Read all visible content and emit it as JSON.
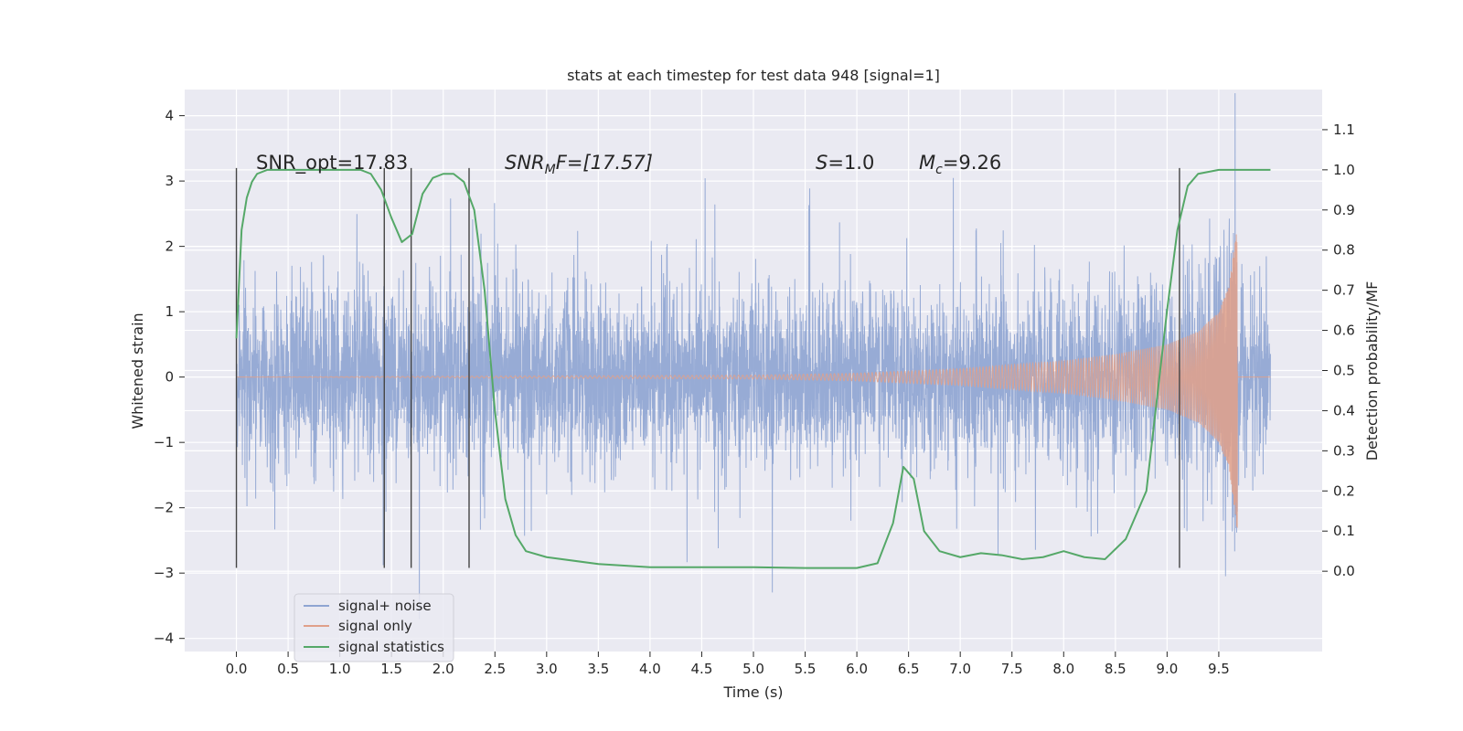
{
  "chart_data": {
    "type": "line",
    "title": "stats at each timestep for test data 948 [signal=1]",
    "xlabel": "Time (s)",
    "ylabel": "Whitened strain",
    "ylabel_right": "Detection probability/MF",
    "xlim": [
      -0.5,
      10.5
    ],
    "ylim": [
      -4.2,
      4.4
    ],
    "ylim_right": [
      -0.2,
      1.2
    ],
    "x_ticks": [
      "0.0",
      "0.5",
      "1.0",
      "1.5",
      "2.0",
      "2.5",
      "3.0",
      "3.5",
      "4.0",
      "4.5",
      "5.0",
      "5.5",
      "6.0",
      "6.5",
      "7.0",
      "7.5",
      "8.0",
      "8.5",
      "9.0",
      "9.5"
    ],
    "y_ticks": [
      "4",
      "3",
      "2",
      "1",
      "0",
      "−1",
      "−2",
      "−3",
      "−4"
    ],
    "y_ticks_right": [
      "1.1",
      "1.0",
      "0.9",
      "0.8",
      "0.7",
      "0.6",
      "0.5",
      "0.4",
      "0.3",
      "0.2",
      "0.1",
      "0.0"
    ],
    "grid": true,
    "legend_position": "bottom-left",
    "annotations": {
      "snr_opt": "SNR_opt=17.83",
      "snr_mf_main": "SNR",
      "snr_mf_sub": "M",
      "snr_mf_rest": "F=[17.57]",
      "s_main": "S",
      "s_rest": "=1.0",
      "mc_main": "M",
      "mc_sub": "c",
      "mc_rest": "=9.26"
    },
    "series": [
      {
        "name": "signal+ noise",
        "color": "#8fa5d2",
        "x_range": [
          0.0,
          10.0
        ],
        "typical_amplitude": 1.3,
        "peak_amplitude": 4.0
      },
      {
        "name": "signal only",
        "color": "#e0a08a",
        "x_range": [
          0.0,
          9.7
        ],
        "envelope": [
          [
            0.0,
            0.0
          ],
          [
            5.0,
            0.03
          ],
          [
            6.0,
            0.06
          ],
          [
            7.0,
            0.13
          ],
          [
            8.0,
            0.25
          ],
          [
            8.5,
            0.35
          ],
          [
            9.0,
            0.5
          ],
          [
            9.3,
            0.7
          ],
          [
            9.5,
            1.0
          ],
          [
            9.6,
            1.4
          ],
          [
            9.68,
            2.4
          ]
        ]
      },
      {
        "name": "signal statistics",
        "color": "#55a868",
        "axis": "right",
        "points": [
          [
            0.0,
            0.58
          ],
          [
            0.05,
            0.85
          ],
          [
            0.1,
            0.93
          ],
          [
            0.15,
            0.97
          ],
          [
            0.2,
            0.99
          ],
          [
            0.3,
            1.0
          ],
          [
            0.5,
            1.0
          ],
          [
            1.0,
            1.0
          ],
          [
            1.2,
            1.0
          ],
          [
            1.3,
            0.99
          ],
          [
            1.4,
            0.95
          ],
          [
            1.5,
            0.88
          ],
          [
            1.6,
            0.82
          ],
          [
            1.7,
            0.84
          ],
          [
            1.8,
            0.94
          ],
          [
            1.9,
            0.98
          ],
          [
            2.0,
            0.99
          ],
          [
            2.1,
            0.99
          ],
          [
            2.2,
            0.97
          ],
          [
            2.3,
            0.9
          ],
          [
            2.4,
            0.7
          ],
          [
            2.5,
            0.4
          ],
          [
            2.6,
            0.18
          ],
          [
            2.7,
            0.09
          ],
          [
            2.8,
            0.05
          ],
          [
            3.0,
            0.035
          ],
          [
            3.5,
            0.018
          ],
          [
            4.0,
            0.01
          ],
          [
            4.5,
            0.01
          ],
          [
            5.0,
            0.01
          ],
          [
            5.5,
            0.008
          ],
          [
            6.0,
            0.008
          ],
          [
            6.2,
            0.02
          ],
          [
            6.35,
            0.12
          ],
          [
            6.45,
            0.26
          ],
          [
            6.55,
            0.23
          ],
          [
            6.65,
            0.1
          ],
          [
            6.8,
            0.05
          ],
          [
            7.0,
            0.035
          ],
          [
            7.2,
            0.045
          ],
          [
            7.4,
            0.04
          ],
          [
            7.6,
            0.03
          ],
          [
            7.8,
            0.035
          ],
          [
            8.0,
            0.05
          ],
          [
            8.2,
            0.035
          ],
          [
            8.4,
            0.03
          ],
          [
            8.6,
            0.08
          ],
          [
            8.8,
            0.2
          ],
          [
            9.0,
            0.65
          ],
          [
            9.1,
            0.85
          ],
          [
            9.2,
            0.96
          ],
          [
            9.3,
            0.99
          ],
          [
            9.5,
            1.0
          ],
          [
            9.8,
            1.0
          ],
          [
            10.0,
            1.0
          ]
        ]
      }
    ],
    "vertical_lines_x": [
      0.0,
      1.43,
      1.69,
      2.25,
      9.12
    ]
  }
}
